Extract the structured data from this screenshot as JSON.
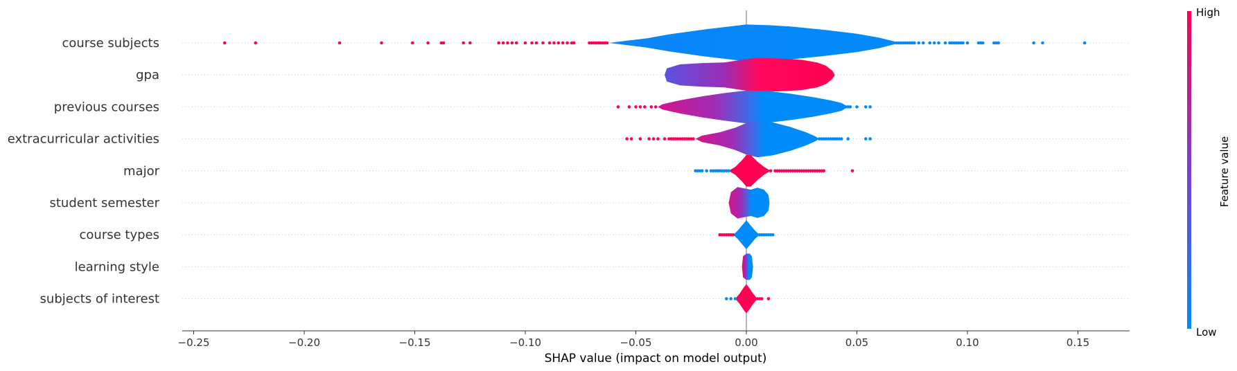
{
  "chart_data": {
    "type": "violin",
    "xlabel": "SHAP value (impact on model output)",
    "xlim": [
      -0.257,
      0.173
    ],
    "xticks": [
      -0.25,
      -0.2,
      -0.15,
      -0.1,
      -0.05,
      0.0,
      0.05,
      0.1,
      0.15
    ],
    "xtick_labels": [
      "−0.25",
      "−0.20",
      "−0.15",
      "−0.10",
      "−0.05",
      "0.00",
      "0.05",
      "0.10",
      "0.15"
    ],
    "colorbar": {
      "label": "Feature value",
      "high_label": "High",
      "low_label": "Low",
      "high_color": "#ff0d57",
      "low_color": "#1e88e5"
    },
    "features": [
      {
        "name": "course subjects",
        "violin": [
          [
            -0.062,
            0
          ],
          [
            -0.055,
            1.5
          ],
          [
            -0.045,
            3.5
          ],
          [
            -0.035,
            6.5
          ],
          [
            -0.02,
            10
          ],
          [
            -0.005,
            13
          ],
          [
            0,
            14
          ],
          [
            0.01,
            13.5
          ],
          [
            0.02,
            12.5
          ],
          [
            0.035,
            10
          ],
          [
            0.05,
            7
          ],
          [
            0.06,
            4
          ],
          [
            0.066,
            1.5
          ],
          [
            0.07,
            0
          ]
        ],
        "fill": "gradient_blue",
        "dots_high": [
          -0.236,
          -0.222,
          -0.184,
          -0.165,
          -0.151,
          -0.144,
          -0.138,
          -0.137,
          -0.128,
          -0.125,
          -0.112,
          -0.11,
          -0.108,
          -0.106,
          -0.104,
          -0.1,
          -0.097,
          -0.095,
          -0.092,
          -0.089,
          -0.087,
          -0.085,
          -0.083,
          -0.081,
          -0.079,
          -0.078,
          -0.071,
          -0.07,
          -0.069,
          -0.068,
          -0.067,
          -0.066,
          -0.065,
          -0.064,
          -0.063
        ],
        "dots_low": [
          0.068,
          0.069,
          0.07,
          0.071,
          0.072,
          0.073,
          0.074,
          0.075,
          0.076,
          0.078,
          0.08,
          0.083,
          0.085,
          0.087,
          0.09,
          0.092,
          0.093,
          0.094,
          0.095,
          0.096,
          0.097,
          0.098,
          0.1,
          0.105,
          0.106,
          0.107,
          0.112,
          0.113,
          0.114,
          0.13,
          0.134,
          0.153
        ]
      },
      {
        "name": "gpa",
        "violin": [
          [
            -0.037,
            0
          ],
          [
            -0.036,
            5
          ],
          [
            -0.03,
            8
          ],
          [
            -0.02,
            9
          ],
          [
            -0.01,
            9.5
          ],
          [
            0,
            12
          ],
          [
            0.005,
            13
          ],
          [
            0.015,
            12.5
          ],
          [
            0.025,
            11.5
          ],
          [
            0.032,
            9.5
          ],
          [
            0.036,
            7
          ],
          [
            0.039,
            3
          ],
          [
            0.04,
            0
          ]
        ],
        "fill": "gradient_blue_to_red",
        "dots_high": [],
        "dots_low": []
      },
      {
        "name": "previous courses",
        "violin": [
          [
            -0.04,
            0
          ],
          [
            -0.038,
            2
          ],
          [
            -0.03,
            5
          ],
          [
            -0.02,
            8
          ],
          [
            -0.01,
            10.5
          ],
          [
            0,
            12.5
          ],
          [
            0.01,
            12
          ],
          [
            0.02,
            10
          ],
          [
            0.03,
            7.5
          ],
          [
            0.038,
            5
          ],
          [
            0.043,
            3
          ],
          [
            0.046,
            0
          ]
        ],
        "fill": "gradient_red_to_blue",
        "dots_high": [
          -0.058,
          -0.053,
          -0.05,
          -0.048,
          -0.046,
          -0.043,
          -0.041
        ],
        "dots_low": [
          0.043,
          0.044,
          0.045,
          0.046,
          0.047,
          0.05,
          0.054,
          0.056
        ]
      },
      {
        "name": "extracurricular activities",
        "violin": [
          [
            -0.023,
            0
          ],
          [
            -0.02,
            2.5
          ],
          [
            -0.012,
            5
          ],
          [
            -0.005,
            8.5
          ],
          [
            0,
            12
          ],
          [
            0.005,
            14
          ],
          [
            0.012,
            12.5
          ],
          [
            0.02,
            9
          ],
          [
            0.027,
            5
          ],
          [
            0.031,
            2
          ],
          [
            0.033,
            0
          ]
        ],
        "fill": "gradient_red_to_blue",
        "dots_high": [
          -0.054,
          -0.052,
          -0.048,
          -0.044,
          -0.042,
          -0.04,
          -0.037,
          -0.035,
          -0.034,
          -0.033,
          -0.032,
          -0.031,
          -0.03,
          -0.029,
          -0.028,
          -0.027,
          -0.026,
          -0.025,
          -0.024
        ],
        "dots_low": [
          0.031,
          0.033,
          0.034,
          0.035,
          0.036,
          0.037,
          0.038,
          0.039,
          0.04,
          0.041,
          0.042,
          0.043,
          0.046,
          0.054,
          0.056
        ]
      },
      {
        "name": "major",
        "violin": [
          [
            -0.008,
            0
          ],
          [
            -0.005,
            3
          ],
          [
            -0.002,
            8
          ],
          [
            0,
            12
          ],
          [
            0.002,
            12
          ],
          [
            0.005,
            7
          ],
          [
            0.008,
            3
          ],
          [
            0.011,
            0
          ]
        ],
        "fill": "red",
        "dots_high": [
          0.011,
          0.013,
          0.014,
          0.015,
          0.016,
          0.017,
          0.018,
          0.019,
          0.02,
          0.021,
          0.022,
          0.023,
          0.024,
          0.025,
          0.026,
          0.027,
          0.028,
          0.029,
          0.03,
          0.031,
          0.032,
          0.033,
          0.034,
          0.035,
          0.048
        ],
        "dots_low": [
          -0.023,
          -0.022,
          -0.021,
          -0.02,
          -0.018,
          -0.016,
          -0.015,
          -0.014,
          -0.013,
          -0.012,
          -0.011,
          -0.01,
          -0.009,
          -0.008
        ]
      },
      {
        "name": "student semester",
        "violin": [
          [
            -0.008,
            0
          ],
          [
            -0.007,
            8
          ],
          [
            -0.004,
            12
          ],
          [
            -0.001,
            11
          ],
          [
            0.002,
            10
          ],
          [
            0.005,
            11.5
          ],
          [
            0.008,
            10
          ],
          [
            0.01,
            6
          ],
          [
            0.0105,
            0
          ]
        ],
        "fill": "gradient_red_to_blue",
        "dots_high": [],
        "dots_low": []
      },
      {
        "name": "course types",
        "violin": [
          [
            -0.006,
            0
          ],
          [
            -0.004,
            3
          ],
          [
            -0.002,
            7
          ],
          [
            0,
            11
          ],
          [
            0.002,
            7
          ],
          [
            0.004,
            3
          ],
          [
            0.006,
            0
          ]
        ],
        "fill": "blue",
        "dots_high": [
          -0.012,
          -0.011,
          -0.01,
          -0.009,
          -0.008,
          -0.007,
          -0.006
        ],
        "dots_low": [
          0.006,
          0.007,
          0.008,
          0.009,
          0.01,
          0.011,
          0.012
        ]
      },
      {
        "name": "learning style",
        "violin": [
          [
            -0.002,
            0
          ],
          [
            -0.0015,
            8
          ],
          [
            0,
            10
          ],
          [
            0.0015,
            10
          ],
          [
            0.0025,
            8
          ],
          [
            0.003,
            0
          ]
        ],
        "fill": "mixed",
        "dots_high": [],
        "dots_low": []
      },
      {
        "name": "subjects of interest",
        "violin": [
          [
            -0.005,
            0
          ],
          [
            -0.003,
            4
          ],
          [
            -0.001,
            9
          ],
          [
            0,
            11
          ],
          [
            0.001,
            9
          ],
          [
            0.003,
            4
          ],
          [
            0.005,
            0
          ]
        ],
        "fill": "red",
        "dots_high": [
          0.005,
          0.006,
          0.007,
          0.01
        ],
        "dots_low": [
          -0.009,
          -0.007,
          -0.005
        ]
      }
    ]
  }
}
